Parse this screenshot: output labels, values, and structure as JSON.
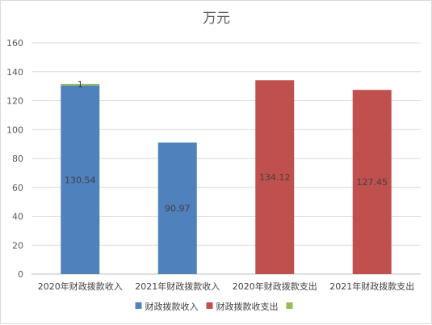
{
  "chart_data": {
    "type": "bar",
    "stacked": true,
    "title": "万元",
    "categories": [
      "2020年财政拨款收入",
      "2021年财政拨款收入",
      "2020年财政拨款支出",
      "2021年财政拨款支出"
    ],
    "series": [
      {
        "name": "财政拨款收入",
        "color": "#4f81bd",
        "values": [
          130.54,
          90.97,
          0,
          0
        ],
        "labels": [
          "130.54",
          "90.97",
          "",
          ""
        ]
      },
      {
        "name": "财政拨款收支出",
        "color": "#c0504d",
        "values": [
          0,
          0,
          134.12,
          127.45
        ],
        "labels": [
          "",
          "",
          "134.12",
          "127.45"
        ]
      },
      {
        "name": "",
        "color": "#9bbb59",
        "values": [
          1,
          0,
          0,
          0
        ],
        "labels": [
          "1",
          "",
          "",
          ""
        ]
      }
    ],
    "ylim": [
      0,
      160
    ],
    "yticks": [
      0,
      20,
      40,
      60,
      80,
      100,
      120,
      140,
      160
    ],
    "grid": true,
    "legend_position": "bottom"
  }
}
